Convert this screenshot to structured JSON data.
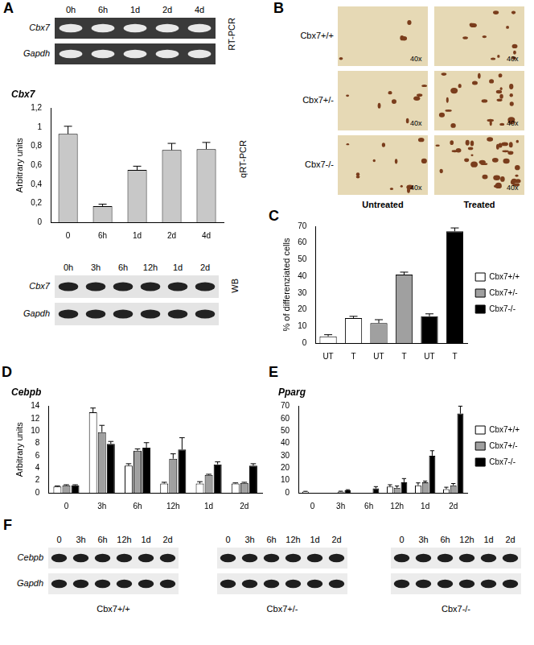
{
  "figure": {
    "panel_A": {
      "letter": "A",
      "rt_pcr": {
        "columns": [
          "0h",
          "6h",
          "1d",
          "2d",
          "4d"
        ],
        "rows": [
          "Cbx7",
          "Gapdh"
        ],
        "method": "RT-PCR"
      },
      "wb": {
        "columns": [
          "0h",
          "3h",
          "6h",
          "12h",
          "1d",
          "2d"
        ],
        "rows": [
          "Cbx7",
          "Gapdh"
        ],
        "method": "WB"
      }
    },
    "panel_B": {
      "letter": "B",
      "rows": [
        "Cbx7+/+",
        "Cbx7+/-",
        "Cbx7-/-"
      ],
      "columns": [
        "Untreated",
        "Treated"
      ],
      "magnification": "40x"
    },
    "panel_F": {
      "letter": "F",
      "columns": [
        "0",
        "3h",
        "6h",
        "12h",
        "1d",
        "2d"
      ],
      "rows": [
        "Cebpb",
        "Gapdh"
      ],
      "genotypes": [
        "Cbx7+/+",
        "Cbx7+/-",
        "Cbx7-/-"
      ]
    }
  },
  "chart_data": [
    {
      "type": "bar",
      "title": "Cbx7",
      "y_label": "Arbitrary units",
      "annotation": "qRT-PCR",
      "categories": [
        "0",
        "6h",
        "1d",
        "2d",
        "4d"
      ],
      "values": [
        0.93,
        0.17,
        0.55,
        0.76,
        0.77
      ],
      "errors": [
        0.08,
        0.02,
        0.04,
        0.07,
        0.07
      ],
      "color": "#c8c8c8",
      "ylim": [
        0,
        1.2
      ],
      "yticks": [
        0,
        {
          "value": 0.2,
          "label": "0,2"
        },
        {
          "value": 0.4,
          "label": "0,4"
        },
        {
          "value": 0.6,
          "label": "0,6"
        },
        {
          "value": 0.8,
          "label": "0,8"
        },
        1,
        {
          "value": 1.2,
          "label": "1,2"
        }
      ],
      "grid": false
    },
    {
      "panel": "C",
      "type": "bar",
      "y_label": "% of differenziated cells",
      "categories": [
        "UT",
        "T",
        "UT",
        "T",
        "UT",
        "T"
      ],
      "series": [
        {
          "name": "Cbx7+/+",
          "color": "#ffffff",
          "values": [
            4,
            15,
            null,
            null,
            null,
            null
          ],
          "errors": [
            1,
            1,
            null,
            null,
            null,
            null
          ]
        },
        {
          "name": "Cbx7+/-",
          "color": "#a0a0a0",
          "values": [
            null,
            null,
            12,
            41,
            null,
            null
          ],
          "errors": [
            null,
            null,
            2,
            1.5,
            null,
            null
          ]
        },
        {
          "name": "Cbx7-/-",
          "color": "#000000",
          "values": [
            null,
            null,
            null,
            null,
            16,
            67
          ],
          "errors": [
            null,
            null,
            null,
            null,
            1.5,
            2
          ]
        }
      ],
      "ylim": [
        0,
        70
      ],
      "yticks": [
        0,
        10,
        20,
        30,
        40,
        50,
        60,
        70
      ],
      "legend": "right",
      "grid": false
    },
    {
      "panel": "D",
      "type": "bar",
      "title": "Cebpb",
      "y_label": "Arbitrary units",
      "categories": [
        "0",
        "3h",
        "6h",
        "12h",
        "1d",
        "2d"
      ],
      "series": [
        {
          "name": "Cbx7+/+",
          "color": "#ffffff",
          "values": [
            1.0,
            13.0,
            4.4,
            1.5,
            1.5,
            1.5
          ],
          "errors": [
            0.1,
            0.7,
            0.3,
            0.2,
            0.3,
            0.1
          ]
        },
        {
          "name": "Cbx7+/-",
          "color": "#a0a0a0",
          "values": [
            1.2,
            9.8,
            6.8,
            5.5,
            2.9,
            1.6
          ],
          "errors": [
            0.1,
            1.1,
            0.3,
            0.8,
            0.1,
            0.1
          ]
        },
        {
          "name": "Cbx7-/-",
          "color": "#000000",
          "values": [
            1.2,
            7.9,
            7.3,
            7.0,
            4.6,
            4.4
          ],
          "errors": [
            0.1,
            0.4,
            0.8,
            1.9,
            0.4,
            0.3
          ]
        }
      ],
      "ylim": [
        0,
        14
      ],
      "yticks": [
        0,
        2,
        4,
        6,
        8,
        10,
        12,
        14
      ],
      "grid": false
    },
    {
      "panel": "E",
      "type": "bar",
      "title": "Pparg",
      "categories": [
        "0",
        "3h",
        "6h",
        "12h",
        "1d",
        "2d"
      ],
      "series": [
        {
          "name": "Cbx7+/+",
          "color": "#ffffff",
          "values": [
            1,
            0,
            0,
            5,
            6,
            3
          ],
          "errors": [
            0.2,
            0,
            0,
            1.5,
            2,
            1.5
          ]
        },
        {
          "name": "Cbx7+/-",
          "color": "#a0a0a0",
          "values": [
            0,
            1,
            0,
            4,
            8.5,
            6
          ],
          "errors": [
            0,
            0.3,
            0,
            1.5,
            1,
            1.5
          ]
        },
        {
          "name": "Cbx7-/-",
          "color": "#000000",
          "values": [
            0,
            2,
            3.5,
            8.5,
            30,
            64
          ],
          "errors": [
            0,
            0.5,
            1.5,
            3,
            4,
            6
          ]
        }
      ],
      "ylim": [
        0,
        70
      ],
      "yticks": [
        0,
        10,
        20,
        30,
        40,
        50,
        60,
        70
      ],
      "legend": "right",
      "grid": false
    }
  ]
}
